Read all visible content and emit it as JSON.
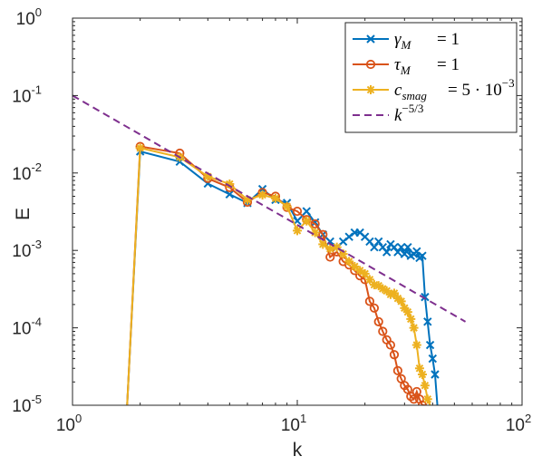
{
  "chart_data": {
    "type": "line",
    "xlabel": "k",
    "ylabel": "E",
    "xscale": "log",
    "yscale": "log",
    "xlim": [
      1,
      100
    ],
    "ylim": [
      1e-05,
      1
    ],
    "x_ticks": [
      {
        "base": "10",
        "exp": "0",
        "value": 1
      },
      {
        "base": "10",
        "exp": "1",
        "value": 10
      },
      {
        "base": "10",
        "exp": "2",
        "value": 100
      }
    ],
    "y_ticks": [
      {
        "base": "10",
        "exp": "0",
        "value": 1
      },
      {
        "base": "10",
        "exp": "-1",
        "value": 0.1
      },
      {
        "base": "10",
        "exp": "-2",
        "value": 0.01
      },
      {
        "base": "10",
        "exp": "-3",
        "value": 0.001
      },
      {
        "base": "10",
        "exp": "-4",
        "value": 0.0001
      },
      {
        "base": "10",
        "exp": "-5",
        "value": 1e-05
      }
    ],
    "grid": false,
    "legend_position": "top-right",
    "series": [
      {
        "name": "γM = 1",
        "legend": {
          "sym": "γ",
          "sub": "M",
          "mid": "= 1",
          "sup": ""
        },
        "color": "#0072bd",
        "marker": "x",
        "x": [
          1.75,
          2,
          3,
          4,
          5,
          6,
          7,
          8,
          9,
          10,
          11,
          12,
          13,
          14,
          15,
          16,
          17,
          18,
          19,
          20,
          21,
          22,
          23,
          24,
          25,
          26,
          27,
          28,
          29,
          30,
          31,
          32,
          33,
          34,
          35,
          36,
          37,
          38,
          39,
          40,
          41,
          42
        ],
        "y": [
          1e-05,
          0.019,
          0.014,
          0.0073,
          0.0053,
          0.0041,
          0.0062,
          0.0045,
          0.0041,
          0.0024,
          0.0032,
          0.0023,
          0.0016,
          0.0013,
          0.0011,
          0.0013,
          0.0015,
          0.0017,
          0.0017,
          0.0015,
          0.0013,
          0.0011,
          0.0013,
          0.0011,
          0.00095,
          0.0012,
          0.0011,
          0.00095,
          0.0011,
          0.0009,
          0.0011,
          0.00085,
          0.0009,
          0.00097,
          0.0008,
          0.00085,
          0.00025,
          0.00012,
          6e-05,
          4e-05,
          2.5e-05,
          1e-05
        ]
      },
      {
        "name": "τM = 1",
        "legend": {
          "sym": "τ",
          "sub": "M",
          "mid": "= 1",
          "sup": ""
        },
        "color": "#d95319",
        "marker": "o",
        "x": [
          1.75,
          2,
          3,
          4,
          5,
          6,
          7,
          8,
          9,
          10,
          11,
          12,
          13,
          14,
          15,
          16,
          17,
          18,
          19,
          20,
          21,
          22,
          23,
          24,
          25,
          26,
          27,
          28,
          29,
          30,
          31,
          32,
          33,
          34,
          35,
          36,
          37
        ],
        "y": [
          1e-05,
          0.022,
          0.018,
          0.0085,
          0.0065,
          0.0042,
          0.0056,
          0.005,
          0.0036,
          0.0032,
          0.0025,
          0.0022,
          0.0016,
          0.00082,
          0.00096,
          0.00072,
          0.00065,
          0.00055,
          0.00047,
          0.00042,
          0.00022,
          0.00018,
          0.00012,
          9e-05,
          7e-05,
          6e-05,
          4.5e-05,
          2.8e-05,
          2.2e-05,
          1.8e-05,
          1.6e-05,
          1.3e-05,
          1.2e-05,
          1.5e-05,
          1.2e-05,
          1e-05,
          1e-05
        ]
      },
      {
        "name": "csmag = 5·10−3",
        "legend": {
          "sym": "c",
          "sub": "smag",
          "mid": "= 5 · 10",
          "sup": "−3"
        },
        "color": "#edb120",
        "marker": "*",
        "x": [
          1.75,
          2,
          3,
          4,
          5,
          6,
          7,
          8,
          9,
          10,
          11,
          12,
          13,
          14,
          15,
          16,
          17,
          18,
          19,
          20,
          21,
          22,
          23,
          24,
          25,
          26,
          27,
          28,
          29,
          30,
          31,
          32,
          33,
          34,
          35,
          36,
          37,
          38,
          39
        ],
        "y": [
          1e-05,
          0.021,
          0.016,
          0.009,
          0.0072,
          0.0045,
          0.0052,
          0.0047,
          0.0037,
          0.0018,
          0.0024,
          0.0017,
          0.0012,
          0.00105,
          0.0011,
          0.0009,
          0.00072,
          0.00062,
          0.00055,
          0.0005,
          0.00042,
          0.00036,
          0.00035,
          0.00032,
          0.0003,
          0.00027,
          0.00028,
          0.00024,
          0.00022,
          0.00018,
          0.00016,
          0.00013,
          0.0001,
          6e-05,
          3e-05,
          2.5e-05,
          1.8e-05,
          1.2e-05,
          1e-05
        ]
      },
      {
        "name": "k−5/3",
        "legend": {
          "sym": "k",
          "sub": "",
          "mid": "",
          "sup": "−5/3"
        },
        "color": "#7e2f8e",
        "marker": "none",
        "dashed": true,
        "x": [
          1,
          56
        ],
        "y": [
          0.1,
          0.00012
        ]
      }
    ]
  }
}
